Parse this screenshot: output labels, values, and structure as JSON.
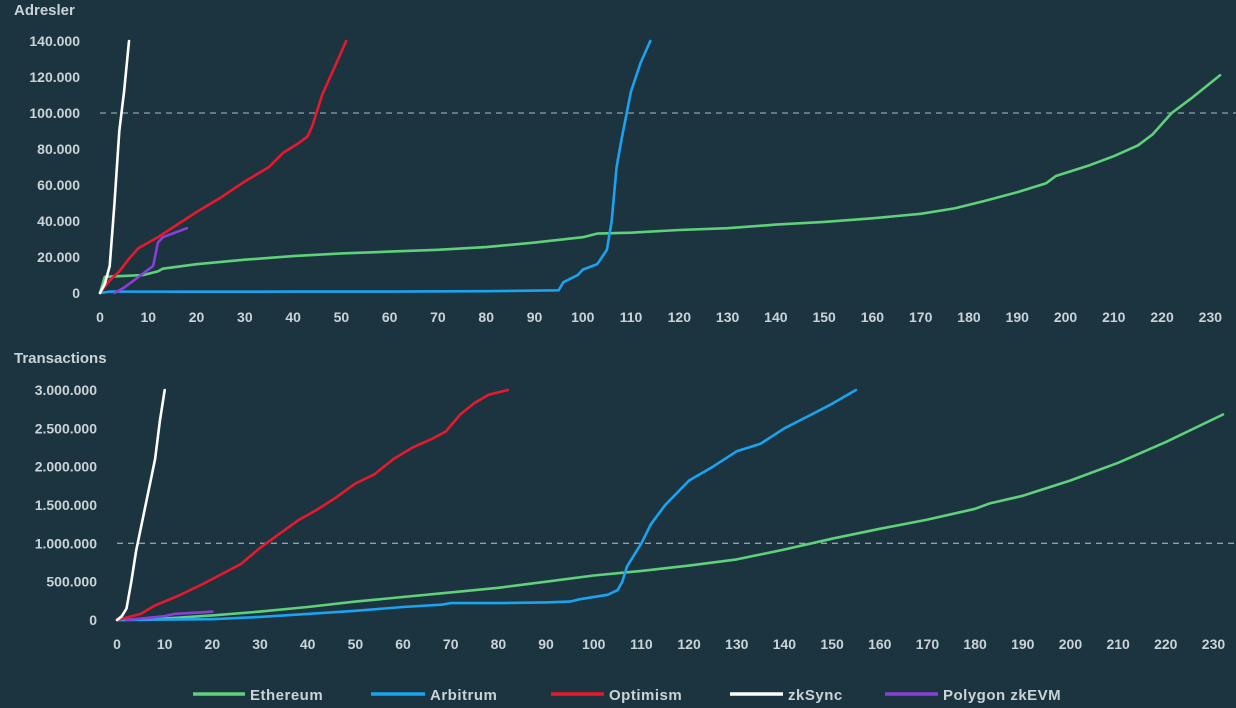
{
  "colors": {
    "background": "#1c3440",
    "text": "#c9d3d8",
    "Ethereum": "#5fd17a",
    "Arbitrum": "#1aa3f0",
    "Optimism": "#e8192c",
    "zkSync": "#ffffff",
    "Polygon zkEVM": "#8a3fd6"
  },
  "legend": [
    "Ethereum",
    "Arbitrum",
    "Optimism",
    "zkSync",
    "Polygon zkEVM"
  ],
  "chart_data": [
    {
      "type": "line",
      "title": "Adresler",
      "xlim": [
        0,
        232
      ],
      "ylim": [
        0,
        140000
      ],
      "x_ticks": [
        0,
        10,
        20,
        30,
        40,
        50,
        60,
        70,
        80,
        90,
        100,
        110,
        120,
        130,
        140,
        150,
        160,
        170,
        180,
        190,
        200,
        210,
        220,
        230
      ],
      "y_ticks": [
        0,
        20000,
        40000,
        60000,
        80000,
        100000,
        120000,
        140000
      ],
      "y_tick_labels": [
        "0",
        "20.000",
        "40.000",
        "60.000",
        "80.000",
        "100.000",
        "120.000",
        "140.000"
      ],
      "reference_line": 100000,
      "series": [
        {
          "name": "Ethereum",
          "points": [
            [
              0,
              0
            ],
            [
              1,
              9000
            ],
            [
              5,
              9500
            ],
            [
              9,
              10000
            ],
            [
              12,
              12000
            ],
            [
              13,
              13500
            ],
            [
              20,
              16000
            ],
            [
              30,
              18500
            ],
            [
              40,
              20500
            ],
            [
              50,
              22000
            ],
            [
              60,
              23000
            ],
            [
              70,
              24000
            ],
            [
              80,
              25500
            ],
            [
              90,
              28000
            ],
            [
              100,
              31000
            ],
            [
              103,
              33000
            ],
            [
              110,
              33500
            ],
            [
              120,
              35000
            ],
            [
              130,
              36000
            ],
            [
              140,
              38000
            ],
            [
              150,
              39500
            ],
            [
              160,
              41500
            ],
            [
              170,
              44000
            ],
            [
              177,
              47000
            ],
            [
              183,
              51000
            ],
            [
              190,
              56000
            ],
            [
              196,
              61000
            ],
            [
              198,
              65000
            ],
            [
              205,
              71000
            ],
            [
              210,
              76000
            ],
            [
              215,
              82000
            ],
            [
              218,
              88000
            ],
            [
              222,
              100000
            ],
            [
              226,
              108000
            ],
            [
              232,
              121000
            ]
          ]
        },
        {
          "name": "Arbitrum",
          "points": [
            [
              0,
              0
            ],
            [
              2,
              800
            ],
            [
              20,
              700
            ],
            [
              40,
              800
            ],
            [
              60,
              800
            ],
            [
              80,
              1000
            ],
            [
              95,
              1500
            ],
            [
              96,
              6000
            ],
            [
              99,
              10000
            ],
            [
              100,
              13000
            ],
            [
              103,
              16000
            ],
            [
              105,
              24000
            ],
            [
              106,
              40000
            ],
            [
              107,
              70000
            ],
            [
              108,
              85000
            ],
            [
              110,
              112000
            ],
            [
              112,
              128000
            ],
            [
              114,
              140000
            ]
          ]
        },
        {
          "name": "Optimism",
          "points": [
            [
              0,
              0
            ],
            [
              2,
              7000
            ],
            [
              4,
              12000
            ],
            [
              6,
              19000
            ],
            [
              8,
              25000
            ],
            [
              12,
              31000
            ],
            [
              16,
              38000
            ],
            [
              20,
              45000
            ],
            [
              25,
              53000
            ],
            [
              30,
              62000
            ],
            [
              35,
              70000
            ],
            [
              38,
              78000
            ],
            [
              41,
              83000
            ],
            [
              43,
              87000
            ],
            [
              44,
              93000
            ],
            [
              46,
              110000
            ],
            [
              49,
              128000
            ],
            [
              51,
              140000
            ]
          ]
        },
        {
          "name": "zkSync",
          "points": [
            [
              0,
              0
            ],
            [
              1,
              5000
            ],
            [
              2,
              15000
            ],
            [
              3,
              50000
            ],
            [
              4,
              90000
            ],
            [
              5,
              112000
            ],
            [
              6,
              140000
            ]
          ]
        },
        {
          "name": "Polygon zkEVM",
          "points": [
            [
              3,
              0
            ],
            [
              5,
              3000
            ],
            [
              7,
              7000
            ],
            [
              10,
              13000
            ],
            [
              11,
              15000
            ],
            [
              12,
              28000
            ],
            [
              13,
              31000
            ],
            [
              15,
              33000
            ],
            [
              18,
              36000
            ]
          ]
        }
      ]
    },
    {
      "type": "line",
      "title": "Transactions",
      "xlim": [
        0,
        232
      ],
      "ylim": [
        0,
        3000000
      ],
      "x_ticks": [
        0,
        10,
        20,
        30,
        40,
        50,
        60,
        70,
        80,
        90,
        100,
        110,
        120,
        130,
        140,
        150,
        160,
        170,
        180,
        190,
        200,
        210,
        220,
        230
      ],
      "y_ticks": [
        0,
        500000,
        1000000,
        1500000,
        2000000,
        2500000,
        3000000
      ],
      "y_tick_labels": [
        "0",
        "500.000",
        "1.000.000",
        "1.500.000",
        "2.000.000",
        "2.500.000",
        "3.000.000"
      ],
      "reference_line": 1000000,
      "series": [
        {
          "name": "Ethereum",
          "points": [
            [
              0,
              0
            ],
            [
              10,
              20000
            ],
            [
              20,
              60000
            ],
            [
              30,
              110000
            ],
            [
              40,
              170000
            ],
            [
              50,
              240000
            ],
            [
              60,
              300000
            ],
            [
              70,
              360000
            ],
            [
              80,
              420000
            ],
            [
              90,
              500000
            ],
            [
              100,
              580000
            ],
            [
              110,
              640000
            ],
            [
              120,
              710000
            ],
            [
              130,
              790000
            ],
            [
              140,
              920000
            ],
            [
              150,
              1060000
            ],
            [
              160,
              1190000
            ],
            [
              170,
              1310000
            ],
            [
              180,
              1450000
            ],
            [
              183,
              1520000
            ],
            [
              190,
              1620000
            ],
            [
              200,
              1820000
            ],
            [
              210,
              2050000
            ],
            [
              220,
              2320000
            ],
            [
              232,
              2680000
            ]
          ]
        },
        {
          "name": "Arbitrum",
          "points": [
            [
              0,
              0
            ],
            [
              10,
              5000
            ],
            [
              20,
              10000
            ],
            [
              30,
              40000
            ],
            [
              40,
              80000
            ],
            [
              50,
              120000
            ],
            [
              60,
              170000
            ],
            [
              68,
              200000
            ],
            [
              70,
              220000
            ],
            [
              80,
              220000
            ],
            [
              90,
              230000
            ],
            [
              95,
              240000
            ],
            [
              97,
              270000
            ],
            [
              103,
              330000
            ],
            [
              105,
              390000
            ],
            [
              106,
              500000
            ],
            [
              107,
              700000
            ],
            [
              110,
              1000000
            ],
            [
              112,
              1250000
            ],
            [
              115,
              1500000
            ],
            [
              120,
              1820000
            ],
            [
              125,
              2000000
            ],
            [
              130,
              2200000
            ],
            [
              135,
              2300000
            ],
            [
              140,
              2500000
            ],
            [
              145,
              2660000
            ],
            [
              150,
              2820000
            ],
            [
              155,
              3000000
            ]
          ]
        },
        {
          "name": "Optimism",
          "points": [
            [
              0,
              0
            ],
            [
              5,
              80000
            ],
            [
              8,
              190000
            ],
            [
              13,
              320000
            ],
            [
              18,
              470000
            ],
            [
              22,
              600000
            ],
            [
              26,
              730000
            ],
            [
              30,
              940000
            ],
            [
              34,
              1120000
            ],
            [
              38,
              1300000
            ],
            [
              42,
              1440000
            ],
            [
              46,
              1600000
            ],
            [
              50,
              1780000
            ],
            [
              54,
              1900000
            ],
            [
              58,
              2100000
            ],
            [
              62,
              2250000
            ],
            [
              66,
              2360000
            ],
            [
              69,
              2460000
            ],
            [
              72,
              2680000
            ],
            [
              75,
              2830000
            ],
            [
              78,
              2940000
            ],
            [
              82,
              3000000
            ]
          ]
        },
        {
          "name": "zkSync",
          "points": [
            [
              0,
              0
            ],
            [
              1,
              50000
            ],
            [
              2,
              150000
            ],
            [
              3,
              500000
            ],
            [
              4,
              900000
            ],
            [
              6,
              1500000
            ],
            [
              8,
              2100000
            ],
            [
              9,
              2600000
            ],
            [
              10,
              3000000
            ]
          ]
        },
        {
          "name": "Polygon zkEVM",
          "points": [
            [
              2,
              0
            ],
            [
              5,
              20000
            ],
            [
              10,
              50000
            ],
            [
              12,
              80000
            ],
            [
              15,
              90000
            ],
            [
              18,
              100000
            ],
            [
              20,
              110000
            ]
          ]
        }
      ]
    }
  ]
}
